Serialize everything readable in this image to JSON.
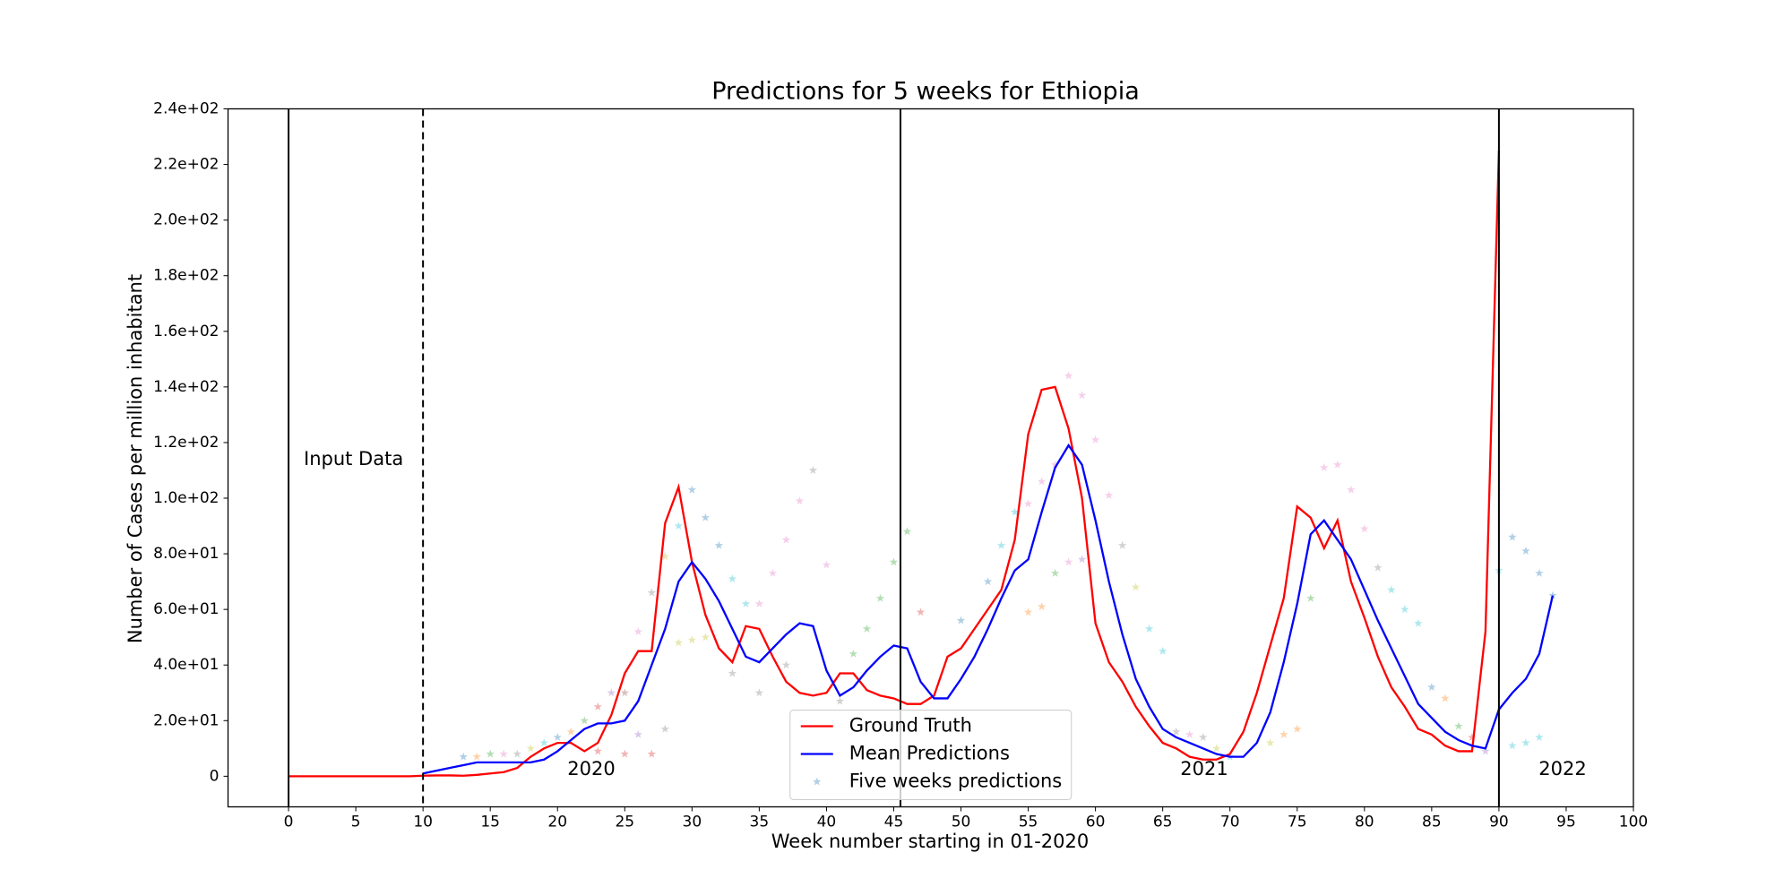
{
  "chart_data": {
    "type": "line",
    "title": "Predictions for 5 weeks for Ethiopia",
    "x_label": "Week number starting in 01-2020",
    "y_label": "Number of Cases per million inhabitant",
    "annotations": [
      "Input Data",
      "2020",
      "2021",
      "2022"
    ],
    "xlim": [
      -4.5,
      100
    ],
    "ylim": [
      -11,
      240
    ],
    "xticks": [
      0,
      5,
      10,
      15,
      20,
      25,
      30,
      35,
      40,
      45,
      50,
      55,
      60,
      65,
      70,
      75,
      80,
      85,
      90,
      95,
      100
    ],
    "yticks": [
      0,
      {
        "value": 20,
        "label": "2.0e+01"
      },
      {
        "value": 40,
        "label": "4.0e+01"
      },
      {
        "value": 60,
        "label": "6.0e+01"
      },
      {
        "value": 80,
        "label": "8.0e+01"
      },
      {
        "value": 100,
        "label": "1.0e+02"
      },
      {
        "value": 120,
        "label": "1.2e+02"
      },
      {
        "value": 140,
        "label": "1.4e+02"
      },
      {
        "value": 160,
        "label": "1.6e+02"
      },
      {
        "value": 180,
        "label": "1.8e+02"
      },
      {
        "value": 200,
        "label": "2.0e+02"
      },
      {
        "value": 220,
        "label": "2.2e+02"
      },
      {
        "value": 240,
        "label": "2.4e+02"
      }
    ],
    "vlines": [
      {
        "x": 0,
        "style": "solid"
      },
      {
        "x": 10,
        "style": "dashed"
      },
      {
        "x": 45.5,
        "style": "solid"
      },
      {
        "x": 90,
        "style": "solid"
      }
    ],
    "legend": "lower center",
    "series": [
      {
        "name": "Ground Truth",
        "color": "#ff0000",
        "x": [
          0,
          1,
          2,
          3,
          4,
          5,
          6,
          7,
          8,
          9,
          10,
          11,
          12,
          13,
          14,
          15,
          16,
          17,
          18,
          19,
          20,
          21,
          22,
          23,
          24,
          25,
          26,
          27,
          28,
          29,
          30,
          31,
          32,
          33,
          34,
          35,
          36,
          37,
          38,
          39,
          40,
          41,
          42,
          43,
          44,
          45,
          46,
          47,
          48,
          49,
          50,
          51,
          52,
          53,
          54,
          55,
          56,
          57,
          58,
          59,
          60,
          61,
          62,
          63,
          64,
          65,
          66,
          67,
          68,
          69,
          70,
          71,
          72,
          73,
          74,
          75,
          76,
          77,
          78,
          79,
          80,
          81,
          82,
          83,
          84,
          85,
          86,
          87,
          88,
          89,
          90
        ],
        "values": [
          0,
          0,
          0,
          0,
          0,
          0,
          0,
          0,
          0,
          0,
          0.2,
          0.3,
          0.3,
          0.2,
          0.5,
          1,
          1.5,
          3,
          7,
          10,
          12,
          12,
          9,
          12,
          22,
          37,
          45,
          45,
          91,
          104,
          77,
          58,
          46,
          41,
          54,
          53,
          43,
          34,
          30,
          29,
          30,
          37,
          37,
          31,
          29,
          28,
          26,
          26,
          29,
          43,
          46,
          53,
          60,
          67,
          85,
          123,
          139,
          140,
          125,
          100,
          55,
          41,
          34,
          25,
          18,
          12,
          10,
          7,
          6,
          6,
          8,
          16,
          30,
          47,
          64,
          97,
          93,
          82,
          92,
          70,
          57,
          43,
          32,
          25,
          17,
          15,
          11,
          9,
          9,
          52,
          225
        ]
      },
      {
        "name": "Mean Predictions",
        "color": "#0000ff",
        "x": [
          10,
          11,
          12,
          13,
          14,
          15,
          16,
          17,
          18,
          19,
          20,
          21,
          22,
          23,
          24,
          25,
          26,
          27,
          28,
          29,
          30,
          31,
          32,
          33,
          34,
          35,
          36,
          37,
          38,
          39,
          40,
          41,
          42,
          43,
          44,
          45,
          46,
          47,
          48,
          49,
          50,
          51,
          52,
          53,
          54,
          55,
          56,
          57,
          58,
          59,
          60,
          61,
          62,
          63,
          64,
          65,
          66,
          67,
          68,
          69,
          70,
          71,
          72,
          73,
          74,
          75,
          76,
          77,
          78,
          79,
          80,
          81,
          82,
          83,
          84,
          85,
          86,
          87,
          88,
          89,
          90,
          91,
          92,
          93,
          94
        ],
        "values": [
          1,
          2,
          3,
          4,
          5,
          5,
          5,
          5,
          5,
          6,
          9,
          13,
          17,
          19,
          19,
          20,
          27,
          40,
          53,
          70,
          77,
          71,
          63,
          53,
          43,
          41,
          46,
          51,
          55,
          54,
          38,
          29,
          32,
          38,
          43,
          47,
          46,
          34,
          28,
          28,
          35,
          43,
          53,
          64,
          74,
          78,
          95,
          111,
          119,
          112,
          92,
          70,
          51,
          35,
          25,
          17,
          14,
          12,
          10,
          8,
          7,
          7,
          12,
          23,
          41,
          62,
          87,
          92,
          85,
          78,
          67,
          56,
          46,
          36,
          26,
          21,
          16,
          13,
          11,
          10,
          24,
          30,
          35,
          44,
          65
        ]
      },
      {
        "name": "Five weeks predictions",
        "type": "scatter",
        "x": [
          13,
          14,
          15,
          16,
          17,
          18,
          19,
          20,
          21,
          22,
          23,
          24,
          25,
          26,
          27,
          28,
          29,
          30,
          31,
          32,
          33,
          34,
          35,
          36,
          37,
          38,
          39,
          40,
          41,
          42,
          43,
          44,
          45,
          46,
          47,
          23,
          25,
          27,
          26,
          28,
          29,
          30,
          31,
          33,
          35,
          37,
          50,
          52,
          53,
          54,
          55,
          56,
          57,
          58,
          59,
          60,
          61,
          62,
          63,
          64,
          65,
          55,
          56,
          57,
          58,
          59,
          66,
          67,
          68,
          69,
          70,
          73,
          74,
          75,
          76,
          77,
          78,
          79,
          80,
          81,
          82,
          83,
          84,
          85,
          86,
          87,
          88,
          89,
          90,
          91,
          92,
          93,
          94,
          91,
          92,
          93
        ],
        "values": [
          7,
          7,
          8,
          8,
          8,
          10,
          12,
          14,
          16,
          20,
          25,
          30,
          30,
          52,
          66,
          79,
          90,
          103,
          93,
          83,
          71,
          62,
          62,
          73,
          85,
          99,
          110,
          76,
          27,
          44,
          53,
          64,
          77,
          88,
          59,
          9,
          8,
          8,
          15,
          17,
          48,
          49,
          50,
          37,
          30,
          40,
          56,
          70,
          83,
          95,
          98,
          106,
          112,
          144,
          137,
          121,
          101,
          83,
          68,
          53,
          45,
          59,
          61,
          73,
          77,
          78,
          16,
          15,
          14,
          10,
          7,
          12,
          15,
          17,
          64,
          111,
          112,
          103,
          89,
          75,
          67,
          60,
          55,
          32,
          28,
          18,
          14,
          9,
          74,
          86,
          81,
          73,
          65,
          11,
          12,
          14
        ],
        "colors": [
          "#1f77b4",
          "#ff7f0e",
          "#2ca02c",
          "#e377c2",
          "#7f7f7f",
          "#bcbd22",
          "#17becf",
          "#1f77b4",
          "#ff7f0e",
          "#2ca02c",
          "#d62728",
          "#9467bd",
          "#8c564b",
          "#e377c2",
          "#7f7f7f",
          "#bcbd22",
          "#17becf",
          "#1f77b4",
          "#1f77b4",
          "#1f77b4",
          "#17becf",
          "#17becf",
          "#e377c2",
          "#e377c2",
          "#e377c2",
          "#e377c2",
          "#7f7f7f",
          "#e377c2",
          "#7f7f7f",
          "#2ca02c",
          "#2ca02c",
          "#2ca02c",
          "#2ca02c",
          "#2ca02c",
          "#d62728",
          "#d62728",
          "#d62728",
          "#d62728",
          "#9467bd",
          "#7f7f7f",
          "#bcbd22",
          "#bcbd22",
          "#bcbd22",
          "#7f7f7f",
          "#7f7f7f",
          "#7f7f7f",
          "#1f77b4",
          "#1f77b4",
          "#17becf",
          "#17becf",
          "#e377c2",
          "#e377c2",
          "#e377c2",
          "#e377c2",
          "#e377c2",
          "#e377c2",
          "#e377c2",
          "#7f7f7f",
          "#bcbd22",
          "#17becf",
          "#17becf",
          "#ff7f0e",
          "#ff7f0e",
          "#2ca02c",
          "#e377c2",
          "#9467bd",
          "#7f7f7f",
          "#e377c2",
          "#7f7f7f",
          "#bcbd22",
          "#17becf",
          "#bcbd22",
          "#ff7f0e",
          "#ff7f0e",
          "#2ca02c",
          "#e377c2",
          "#e377c2",
          "#e377c2",
          "#e377c2",
          "#7f7f7f",
          "#17becf",
          "#17becf",
          "#17becf",
          "#1f77b4",
          "#ff7f0e",
          "#2ca02c",
          "#d62728",
          "#9467bd",
          "#17becf",
          "#1f77b4",
          "#1f77b4",
          "#1f77b4",
          "#1f77b4",
          "#17becf",
          "#17becf",
          "#17becf"
        ],
        "legend_color": "#1f77b4"
      }
    ]
  }
}
